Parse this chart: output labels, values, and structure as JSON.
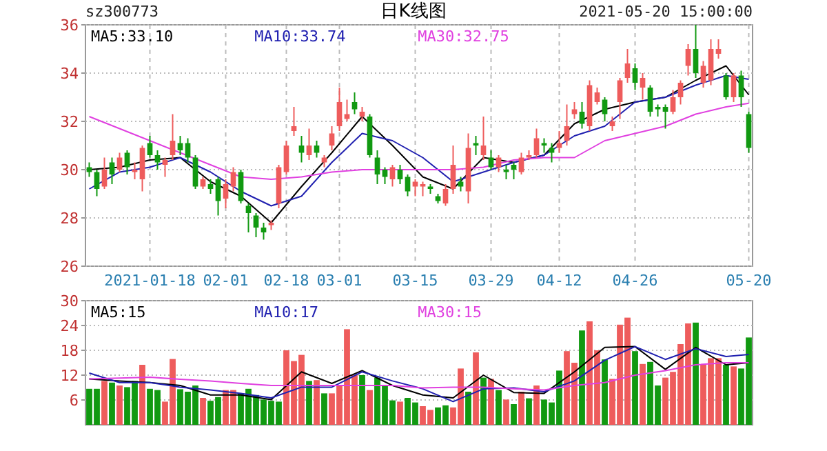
{
  "chart_data": [
    {
      "type": "candlestick",
      "title": "日K线图",
      "annotations": [
        "sz300773",
        "2021-05-20 15:00:00"
      ],
      "categories": [
        null,
        null,
        null,
        null,
        null,
        null,
        null,
        null,
        "2021-01-18",
        null,
        null,
        null,
        null,
        null,
        null,
        null,
        null,
        null,
        "02-01",
        null,
        null,
        null,
        null,
        null,
        null,
        null,
        "02-18",
        null,
        null,
        null,
        null,
        null,
        null,
        "03-01",
        null,
        null,
        null,
        null,
        null,
        null,
        null,
        null,
        null,
        "03-15",
        null,
        null,
        null,
        null,
        null,
        null,
        null,
        null,
        null,
        "03-29",
        null,
        null,
        null,
        null,
        null,
        null,
        null,
        null,
        "04-12",
        null,
        null,
        null,
        null,
        null,
        null,
        null,
        null,
        null,
        "04-26",
        null,
        null,
        null,
        null,
        null,
        null,
        null,
        null,
        null,
        null,
        null,
        null,
        null,
        null,
        "05-20"
      ],
      "ohlc": [
        [
          30.1,
          30.3,
          29.7,
          29.9
        ],
        [
          29.9,
          30.0,
          28.9,
          29.2
        ],
        [
          29.3,
          30.5,
          29.2,
          30.0
        ],
        [
          30.3,
          30.5,
          29.4,
          29.8
        ],
        [
          30.0,
          30.7,
          29.9,
          30.5
        ],
        [
          30.7,
          30.8,
          29.8,
          30.1
        ],
        [
          29.9,
          30.3,
          29.6,
          30.0
        ],
        [
          29.6,
          31.0,
          29.1,
          30.9
        ],
        [
          31.1,
          31.4,
          30.5,
          30.6
        ],
        [
          30.6,
          30.8,
          30.0,
          30.3
        ],
        [
          30.2,
          30.5,
          29.7,
          30.4
        ],
        [
          30.6,
          32.3,
          30.4,
          31.2
        ],
        [
          31.1,
          31.4,
          30.6,
          30.8
        ],
        [
          31.1,
          31.3,
          30.3,
          30.5
        ],
        [
          30.5,
          30.6,
          29.2,
          29.3
        ],
        [
          29.3,
          29.7,
          29.2,
          29.6
        ],
        [
          29.4,
          29.6,
          29.0,
          29.2
        ],
        [
          29.6,
          29.7,
          28.1,
          28.7
        ],
        [
          28.8,
          29.6,
          28.4,
          29.4
        ],
        [
          29.3,
          30.1,
          29.1,
          29.9
        ],
        [
          29.9,
          30.0,
          28.6,
          28.7
        ],
        [
          28.5,
          28.6,
          27.4,
          28.2
        ],
        [
          28.1,
          28.2,
          27.2,
          27.6
        ],
        [
          27.6,
          27.8,
          27.1,
          27.4
        ],
        [
          27.7,
          27.9,
          27.5,
          27.8
        ],
        [
          28.6,
          30.2,
          28.4,
          30.1
        ],
        [
          29.9,
          31.2,
          29.8,
          31.0
        ],
        [
          31.6,
          32.6,
          31.4,
          31.8
        ],
        [
          31.0,
          31.4,
          30.3,
          30.7
        ],
        [
          30.6,
          31.7,
          30.4,
          31.0
        ],
        [
          31.0,
          31.2,
          30.5,
          30.7
        ],
        [
          30.3,
          30.6,
          30.1,
          30.5
        ],
        [
          31.0,
          31.8,
          30.8,
          31.5
        ],
        [
          31.8,
          33.4,
          31.6,
          32.8
        ],
        [
          32.1,
          32.9,
          32.0,
          32.3
        ],
        [
          32.8,
          33.2,
          32.3,
          32.5
        ],
        [
          32.2,
          32.6,
          32.0,
          32.4
        ],
        [
          32.2,
          32.3,
          30.5,
          30.6
        ],
        [
          30.5,
          30.8,
          29.4,
          29.8
        ],
        [
          30.0,
          30.1,
          29.4,
          29.7
        ],
        [
          29.6,
          30.2,
          29.3,
          30.1
        ],
        [
          30.0,
          30.2,
          29.4,
          29.6
        ],
        [
          29.7,
          29.8,
          28.9,
          29.1
        ],
        [
          29.3,
          29.6,
          28.9,
          29.5
        ],
        [
          29.3,
          29.5,
          28.9,
          29.4
        ],
        [
          29.3,
          29.4,
          29.0,
          29.2
        ],
        [
          28.9,
          29.0,
          28.6,
          28.7
        ],
        [
          28.6,
          29.4,
          28.5,
          29.2
        ],
        [
          29.2,
          31.0,
          29.0,
          30.2
        ],
        [
          29.5,
          29.7,
          29.1,
          29.3
        ],
        [
          29.1,
          31.5,
          28.6,
          30.9
        ],
        [
          31.1,
          31.4,
          30.6,
          31.0
        ],
        [
          30.6,
          32.2,
          30.4,
          31.0
        ],
        [
          30.5,
          30.8,
          30.0,
          30.1
        ],
        [
          30.1,
          30.6,
          29.9,
          30.5
        ],
        [
          30.0,
          30.2,
          29.6,
          29.9
        ],
        [
          30.2,
          30.3,
          29.6,
          30.0
        ],
        [
          29.9,
          30.7,
          29.8,
          30.5
        ],
        [
          30.5,
          30.8,
          30.4,
          30.6
        ],
        [
          30.6,
          31.7,
          30.5,
          31.3
        ],
        [
          31.1,
          31.3,
          30.7,
          31.0
        ],
        [
          30.9,
          31.1,
          30.3,
          30.7
        ],
        [
          30.9,
          31.6,
          30.7,
          31.1
        ],
        [
          31.2,
          32.7,
          31.0,
          31.8
        ],
        [
          32.3,
          32.8,
          32.1,
          32.5
        ],
        [
          32.4,
          32.8,
          31.7,
          31.9
        ],
        [
          31.8,
          33.7,
          31.6,
          33.5
        ],
        [
          32.8,
          33.4,
          32.7,
          33.2
        ],
        [
          32.9,
          33.0,
          32.0,
          32.3
        ],
        [
          31.8,
          32.2,
          31.6,
          32.0
        ],
        [
          32.8,
          33.8,
          32.1,
          33.7
        ],
        [
          33.8,
          35.0,
          33.6,
          34.4
        ],
        [
          34.2,
          34.4,
          33.3,
          33.6
        ],
        [
          33.4,
          34.0,
          32.9,
          33.8
        ],
        [
          33.4,
          33.5,
          32.2,
          32.4
        ],
        [
          32.6,
          32.7,
          32.2,
          32.5
        ],
        [
          32.6,
          32.7,
          31.7,
          32.4
        ],
        [
          32.4,
          33.3,
          32.3,
          33.0
        ],
        [
          33.0,
          33.7,
          32.7,
          33.6
        ],
        [
          34.3,
          35.2,
          33.9,
          35.0
        ],
        [
          35.0,
          36.0,
          33.8,
          34.0
        ],
        [
          33.6,
          34.5,
          33.4,
          34.3
        ],
        [
          33.7,
          35.4,
          33.5,
          35.0
        ],
        [
          34.8,
          35.4,
          34.6,
          35.0
        ],
        [
          33.9,
          34.0,
          32.9,
          33.0
        ],
        [
          33.0,
          34.0,
          32.8,
          33.9
        ],
        [
          33.9,
          34.1,
          32.6,
          33.0
        ],
        [
          32.3,
          32.4,
          30.7,
          30.9
        ]
      ],
      "series": [
        {
          "type": "line",
          "name": "MA5:33.10",
          "color": "#000000",
          "values": [
            30.0,
            null,
            null,
            null,
            30.1,
            null,
            null,
            null,
            30.4,
            null,
            null,
            null,
            30.5,
            null,
            null,
            null,
            29.5,
            null,
            null,
            null,
            28.9,
            null,
            null,
            null,
            27.8,
            null,
            null,
            null,
            29.3,
            null,
            null,
            null,
            30.7,
            null,
            null,
            null,
            32.2,
            null,
            null,
            null,
            31.0,
            null,
            null,
            null,
            29.7,
            null,
            null,
            null,
            29.2,
            null,
            null,
            null,
            30.5,
            null,
            null,
            null,
            30.3,
            null,
            null,
            null,
            30.6,
            null,
            null,
            null,
            31.9,
            null,
            null,
            null,
            32.5,
            null,
            null,
            null,
            32.8,
            null,
            null,
            null,
            33.0,
            null,
            null,
            null,
            33.7,
            null,
            null,
            null,
            34.3,
            null,
            null,
            33.1
          ]
        },
        {
          "type": "line",
          "name": "MA10:33.74",
          "color": "#2020b0",
          "values": [
            29.2,
            null,
            null,
            null,
            29.9,
            null,
            null,
            null,
            30.1,
            null,
            null,
            null,
            30.5,
            null,
            null,
            null,
            29.9,
            null,
            null,
            null,
            29.1,
            null,
            null,
            null,
            28.5,
            null,
            null,
            null,
            28.9,
            null,
            null,
            null,
            30.3,
            null,
            null,
            null,
            31.5,
            null,
            null,
            null,
            31.2,
            null,
            null,
            null,
            30.5,
            null,
            null,
            null,
            29.5,
            null,
            null,
            null,
            29.9,
            null,
            null,
            null,
            30.3,
            null,
            null,
            null,
            30.6,
            null,
            null,
            null,
            31.4,
            null,
            null,
            null,
            31.8,
            null,
            null,
            null,
            32.8,
            null,
            null,
            null,
            33.0,
            null,
            null,
            null,
            33.5,
            null,
            null,
            null,
            33.9,
            null,
            null,
            33.74
          ]
        },
        {
          "type": "line",
          "name": "MA30:32.75",
          "color": "#e040e0",
          "values": [
            32.2,
            null,
            null,
            null,
            31.7,
            null,
            null,
            null,
            31.2,
            null,
            null,
            null,
            30.7,
            null,
            null,
            null,
            30.2,
            null,
            null,
            null,
            29.7,
            null,
            null,
            null,
            29.6,
            null,
            null,
            null,
            29.7,
            null,
            null,
            null,
            29.9,
            null,
            null,
            null,
            30.0,
            null,
            null,
            null,
            30.0,
            null,
            null,
            null,
            30.0,
            null,
            null,
            null,
            30.0,
            null,
            null,
            null,
            30.1,
            null,
            null,
            null,
            30.4,
            null,
            null,
            null,
            30.5,
            null,
            null,
            null,
            30.5,
            null,
            null,
            null,
            31.2,
            null,
            null,
            null,
            31.5,
            null,
            null,
            null,
            31.8,
            null,
            null,
            null,
            32.3,
            null,
            null,
            null,
            32.6,
            null,
            null,
            32.75
          ]
        }
      ],
      "ylim": [
        26,
        36
      ],
      "yticks": [
        26,
        28,
        30,
        32,
        34,
        36
      ],
      "grid": true,
      "legend": "top"
    },
    {
      "type": "bar",
      "tick_labels": "y",
      "categories": [
        null,
        null,
        null,
        null,
        null,
        null,
        null,
        null,
        null,
        null,
        null,
        null,
        null,
        null,
        null,
        null,
        null,
        null,
        null,
        null,
        null,
        null,
        null,
        null,
        null,
        null,
        null,
        null,
        null,
        null,
        null,
        null,
        null,
        null,
        null,
        null,
        null,
        null,
        null,
        null,
        null,
        null,
        null,
        null,
        null,
        null,
        null,
        null,
        null,
        null,
        null,
        null,
        null,
        null,
        null,
        null,
        null,
        null,
        null,
        null,
        null,
        null,
        null,
        null,
        null,
        null,
        null,
        null,
        null,
        null,
        null,
        null,
        null,
        null,
        null,
        null,
        null,
        null,
        null,
        null,
        null,
        null,
        null,
        null,
        null,
        null,
        null,
        null
      ],
      "values": [
        8.7,
        8.7,
        10.6,
        10.2,
        9.5,
        9.1,
        10.6,
        14.5,
        8.7,
        8.4,
        5.6,
        15.9,
        8.6,
        8.0,
        9.5,
        6.5,
        5.8,
        6.7,
        8.4,
        8.4,
        7.6,
        8.7,
        7.2,
        6.1,
        5.8,
        5.6,
        18.0,
        15.4,
        16.9,
        10.6,
        10.8,
        7.6,
        7.6,
        9.5,
        23.1,
        12.0,
        12.0,
        8.4,
        11.4,
        9.5,
        5.9,
        5.6,
        6.5,
        5.4,
        4.5,
        3.6,
        4.2,
        4.7,
        4.2,
        13.6,
        8.0,
        17.5,
        11.4,
        11.1,
        8.4,
        6.1,
        5.0,
        8.0,
        6.4,
        9.5,
        6.1,
        5.4,
        13.1,
        17.8,
        15.0,
        22.8,
        25.0,
        18.0,
        15.8,
        11.1,
        24.2,
        25.9,
        17.8,
        14.7,
        15.2,
        9.5,
        11.4,
        12.8,
        19.5,
        24.5,
        24.7,
        14.5,
        16.1,
        16.1,
        14.5,
        14.1,
        13.6,
        21.1
      ],
      "colors": [
        "#119911",
        "#119911",
        "#ee5c5c",
        "#119911",
        "#ee5c5c",
        "#119911",
        "#119911",
        "#ee5c5c",
        "#119911",
        "#119911",
        "#ee5c5c",
        "#ee5c5c",
        "#119911",
        "#119911",
        "#119911",
        "#ee5c5c",
        "#119911",
        "#119911",
        "#ee5c5c",
        "#ee5c5c",
        "#119911",
        "#119911",
        "#119911",
        "#119911",
        "#119911",
        "#119911",
        "#ee5c5c",
        "#ee5c5c",
        "#ee5c5c",
        "#119911",
        "#ee5c5c",
        "#119911",
        "#ee5c5c",
        "#ee5c5c",
        "#ee5c5c",
        "#ee5c5c",
        "#119911",
        "#ee5c5c",
        "#119911",
        "#119911",
        "#119911",
        "#ee5c5c",
        "#119911",
        "#119911",
        "#ee5c5c",
        "#ee5c5c",
        "#119911",
        "#119911",
        "#ee5c5c",
        "#ee5c5c",
        "#119911",
        "#ee5c5c",
        "#119911",
        "#ee5c5c",
        "#119911",
        "#ee5c5c",
        "#119911",
        "#ee5c5c",
        "#119911",
        "#ee5c5c",
        "#119911",
        "#119911",
        "#119911",
        "#ee5c5c",
        "#ee5c5c",
        "#119911",
        "#ee5c5c",
        "#ee5c5c",
        "#119911",
        "#ee5c5c",
        "#ee5c5c",
        "#ee5c5c",
        "#119911",
        "#ee5c5c",
        "#119911",
        "#119911",
        "#ee5c5c",
        "#ee5c5c",
        "#ee5c5c",
        "#ee5c5c",
        "#119911",
        "#ee5c5c",
        "#ee5c5c",
        "#ee5c5c",
        "#119911",
        "#ee5c5c",
        "#119911",
        "#119911"
      ],
      "series": [
        {
          "type": "line",
          "name": "MA5:15",
          "color": "#000000",
          "values": [
            11.1,
            null,
            null,
            null,
            10.6,
            null,
            null,
            null,
            10.2,
            null,
            null,
            null,
            9.5,
            null,
            null,
            null,
            7.2,
            null,
            null,
            null,
            7.2,
            null,
            null,
            null,
            6.1,
            null,
            null,
            null,
            12.8,
            null,
            null,
            null,
            10.0,
            null,
            null,
            null,
            13.1,
            null,
            null,
            null,
            9.5,
            null,
            null,
            null,
            7.2,
            null,
            null,
            null,
            6.5,
            null,
            null,
            null,
            12.0,
            null,
            null,
            null,
            7.8,
            null,
            null,
            null,
            7.6,
            null,
            null,
            null,
            12.8,
            null,
            null,
            null,
            18.7,
            null,
            null,
            null,
            18.9,
            null,
            null,
            null,
            13.4,
            null,
            null,
            null,
            18.7,
            null,
            null,
            null,
            14.5,
            null,
            null,
            15
          ]
        },
        {
          "type": "line",
          "name": "MA10:17",
          "color": "#2020b0",
          "values": [
            12.5,
            null,
            null,
            null,
            10.2,
            null,
            null,
            null,
            10.2,
            null,
            null,
            null,
            9.1,
            null,
            null,
            null,
            8.4,
            null,
            null,
            null,
            7.6,
            null,
            null,
            null,
            6.5,
            null,
            null,
            null,
            9.1,
            null,
            null,
            null,
            9.1,
            null,
            null,
            null,
            12.8,
            null,
            null,
            null,
            10.6,
            null,
            null,
            null,
            8.7,
            null,
            null,
            null,
            5.6,
            null,
            null,
            null,
            8.7,
            null,
            null,
            null,
            8.9,
            null,
            null,
            null,
            8.0,
            null,
            null,
            null,
            10.6,
            null,
            null,
            null,
            15.6,
            null,
            null,
            null,
            18.9,
            null,
            null,
            null,
            15.8,
            null,
            null,
            null,
            18.4,
            null,
            null,
            null,
            16.5,
            null,
            null,
            17
          ]
        },
        {
          "type": "line",
          "name": "MA30:15",
          "color": "#e040e0",
          "values": [
            11.1,
            null,
            null,
            null,
            11.3,
            null,
            null,
            null,
            11.5,
            null,
            null,
            null,
            11.0,
            null,
            null,
            null,
            10.6,
            null,
            null,
            null,
            10.0,
            null,
            null,
            null,
            9.5,
            null,
            null,
            null,
            9.5,
            null,
            null,
            null,
            9.5,
            null,
            null,
            null,
            9.5,
            null,
            null,
            null,
            9.5,
            null,
            null,
            null,
            8.9,
            null,
            null,
            null,
            9.1,
            null,
            null,
            null,
            9.1,
            null,
            null,
            null,
            8.7,
            null,
            null,
            null,
            8.4,
            null,
            null,
            null,
            9.5,
            null,
            null,
            null,
            10.2,
            null,
            null,
            null,
            12.0,
            null,
            null,
            null,
            13.1,
            null,
            null,
            null,
            14.5,
            null,
            null,
            null,
            15.0,
            null,
            null,
            15
          ]
        }
      ],
      "ylim": [
        0,
        30
      ],
      "yticks": [
        6,
        12,
        18,
        24,
        30
      ],
      "grid": true,
      "legend": "top"
    }
  ]
}
